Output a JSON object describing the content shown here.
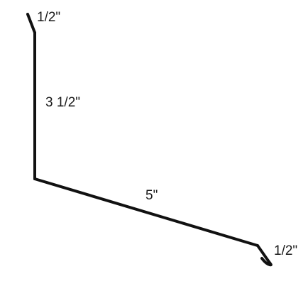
{
  "diagram": {
    "labels": {
      "top_hem": "1/2\"",
      "vertical_leg": "3 1/2\"",
      "bottom_leg": "5\"",
      "end_hem": "1/2\""
    },
    "stroke_color": "#111111",
    "text_color": "#1a1a1a"
  }
}
